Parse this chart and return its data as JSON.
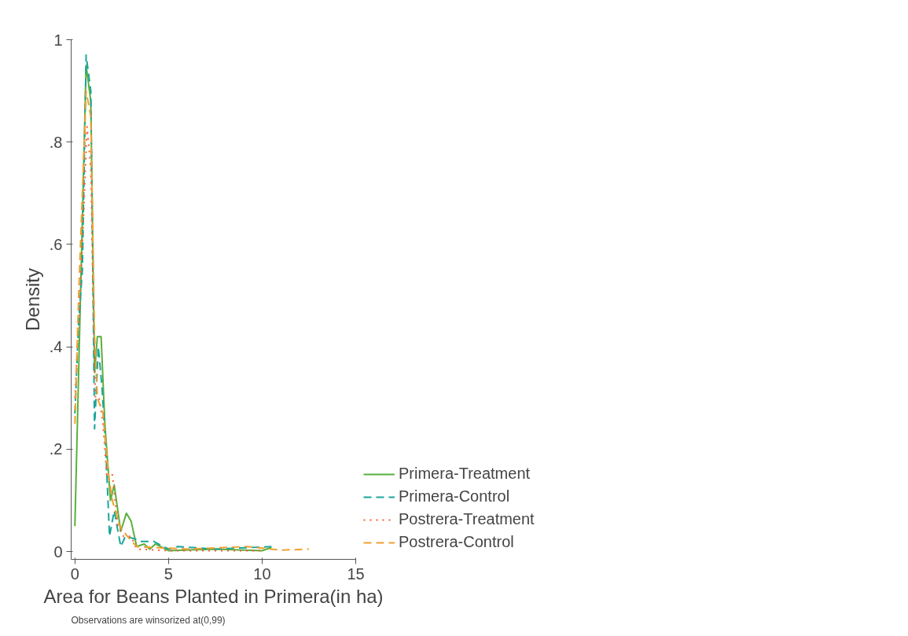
{
  "chart_data": {
    "type": "line",
    "xlabel": "Area for Beans Planted in Primera(in ha)",
    "ylabel": "Density",
    "annotations": [
      "Observations are winsorized at(0,99)"
    ],
    "xlim": [
      -0.2,
      15
    ],
    "ylim": [
      -0.015,
      1.0
    ],
    "xticks": [
      0,
      5,
      10,
      15
    ],
    "yticks": [
      0,
      {
        "value": 0.2,
        "label": ".2"
      },
      {
        "value": 0.4,
        "label": ".4"
      },
      {
        "value": 0.6,
        "label": ".6"
      },
      {
        "value": 0.8,
        "label": ".8"
      },
      1
    ],
    "grid": false,
    "legend": "right",
    "marker": "none",
    "series": [
      {
        "name": "Primera-Treatment",
        "color": "#5aaf3c",
        "line_style": "solid",
        "x": [
          0,
          0.6,
          0.85,
          1.05,
          1.2,
          1.4,
          1.6,
          1.9,
          2.1,
          2.45,
          2.75,
          3.0,
          3.3,
          3.7,
          4.0,
          4.3,
          5,
          7.5,
          10,
          10.5
        ],
        "values": [
          0.05,
          0.95,
          0.88,
          0.35,
          0.42,
          0.42,
          0.25,
          0.1,
          0.13,
          0.04,
          0.075,
          0.06,
          0.01,
          0.015,
          0.005,
          0.015,
          0.002,
          0.005,
          0.002,
          0.008
        ]
      },
      {
        "name": "Primera-Control",
        "color": "#1aa59a",
        "line_style": "dashed",
        "x": [
          0,
          0.2,
          0.4,
          0.6,
          0.85,
          1.05,
          1.25,
          1.45,
          1.65,
          1.85,
          2.1,
          2.45,
          2.7,
          3.2,
          3.5,
          4.2,
          5,
          5.5,
          7.5,
          10.5
        ],
        "values": [
          0.27,
          0.45,
          0.55,
          0.97,
          0.9,
          0.24,
          0.4,
          0.32,
          0.2,
          0.03,
          0.08,
          0.01,
          0.03,
          0.025,
          0.02,
          0.02,
          0.005,
          0.01,
          0.005,
          0.01
        ]
      },
      {
        "name": "Postrera-Treatment",
        "color": "#ff5733",
        "line_style": "dotted",
        "x": [
          0,
          0.2,
          0.4,
          0.65,
          0.85,
          1.0,
          1.1,
          1.3,
          1.5,
          1.7,
          2.0,
          2.3,
          2.6,
          3.0,
          3.3,
          5,
          10
        ],
        "values": [
          0.3,
          0.45,
          0.6,
          0.83,
          0.75,
          0.45,
          0.3,
          0.3,
          0.25,
          0.15,
          0.15,
          0.05,
          0.03,
          0.03,
          0.005,
          0.002,
          0.002
        ]
      },
      {
        "name": "Postrera-Control",
        "color": "#f0a030",
        "line_style": "dashed",
        "x": [
          0,
          0.2,
          0.4,
          0.6,
          0.85,
          1.05,
          1.2,
          1.5,
          1.8,
          2.0,
          2.4,
          2.8,
          3.3,
          6,
          9.2,
          11,
          12.5
        ],
        "values": [
          0.25,
          0.5,
          0.7,
          0.9,
          0.85,
          0.42,
          0.3,
          0.27,
          0.15,
          0.1,
          0.05,
          0.03,
          0.01,
          0.005,
          0.01,
          0.003,
          0.005
        ]
      }
    ]
  }
}
